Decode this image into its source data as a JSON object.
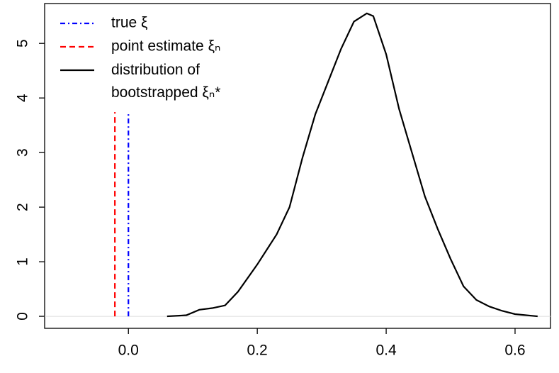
{
  "chart_data": {
    "type": "line",
    "xlim": [
      -0.13,
      0.655
    ],
    "ylim": [
      -0.22,
      5.73
    ],
    "xticks": [
      {
        "value": 0,
        "label": "0.0"
      },
      {
        "value": 0.2,
        "label": "0.2"
      },
      {
        "value": 0.4,
        "label": "0.4"
      },
      {
        "value": 0.6,
        "label": "0.6"
      }
    ],
    "yticks": [
      0,
      1,
      2,
      3,
      4,
      5
    ],
    "legend": "top-left",
    "series": [
      {
        "name": "true ξ",
        "color": "#0000ff",
        "dash": "7,4,2,4",
        "x": [
          0,
          0
        ],
        "values": [
          0,
          3.74
        ]
      },
      {
        "name": "point estimate ξₙ",
        "color": "#ff0000",
        "dash": "8,5",
        "x": [
          -0.021,
          -0.021
        ],
        "values": [
          0,
          3.74
        ]
      },
      {
        "name": "distribution of\nbootstrapped ξₙ*",
        "color": "#000000",
        "dash": "none",
        "x": [
          0.06,
          0.09,
          0.11,
          0.13,
          0.15,
          0.17,
          0.2,
          0.23,
          0.25,
          0.27,
          0.29,
          0.31,
          0.33,
          0.35,
          0.37,
          0.38,
          0.4,
          0.42,
          0.44,
          0.46,
          0.48,
          0.5,
          0.52,
          0.54,
          0.56,
          0.58,
          0.6,
          0.635
        ],
        "values": [
          0,
          0.02,
          0.12,
          0.15,
          0.2,
          0.45,
          0.95,
          1.5,
          2.0,
          2.9,
          3.7,
          4.3,
          4.9,
          5.4,
          5.55,
          5.5,
          4.8,
          3.8,
          3.0,
          2.2,
          1.6,
          1.05,
          0.55,
          0.3,
          0.18,
          0.1,
          0.04,
          0
        ]
      }
    ]
  }
}
